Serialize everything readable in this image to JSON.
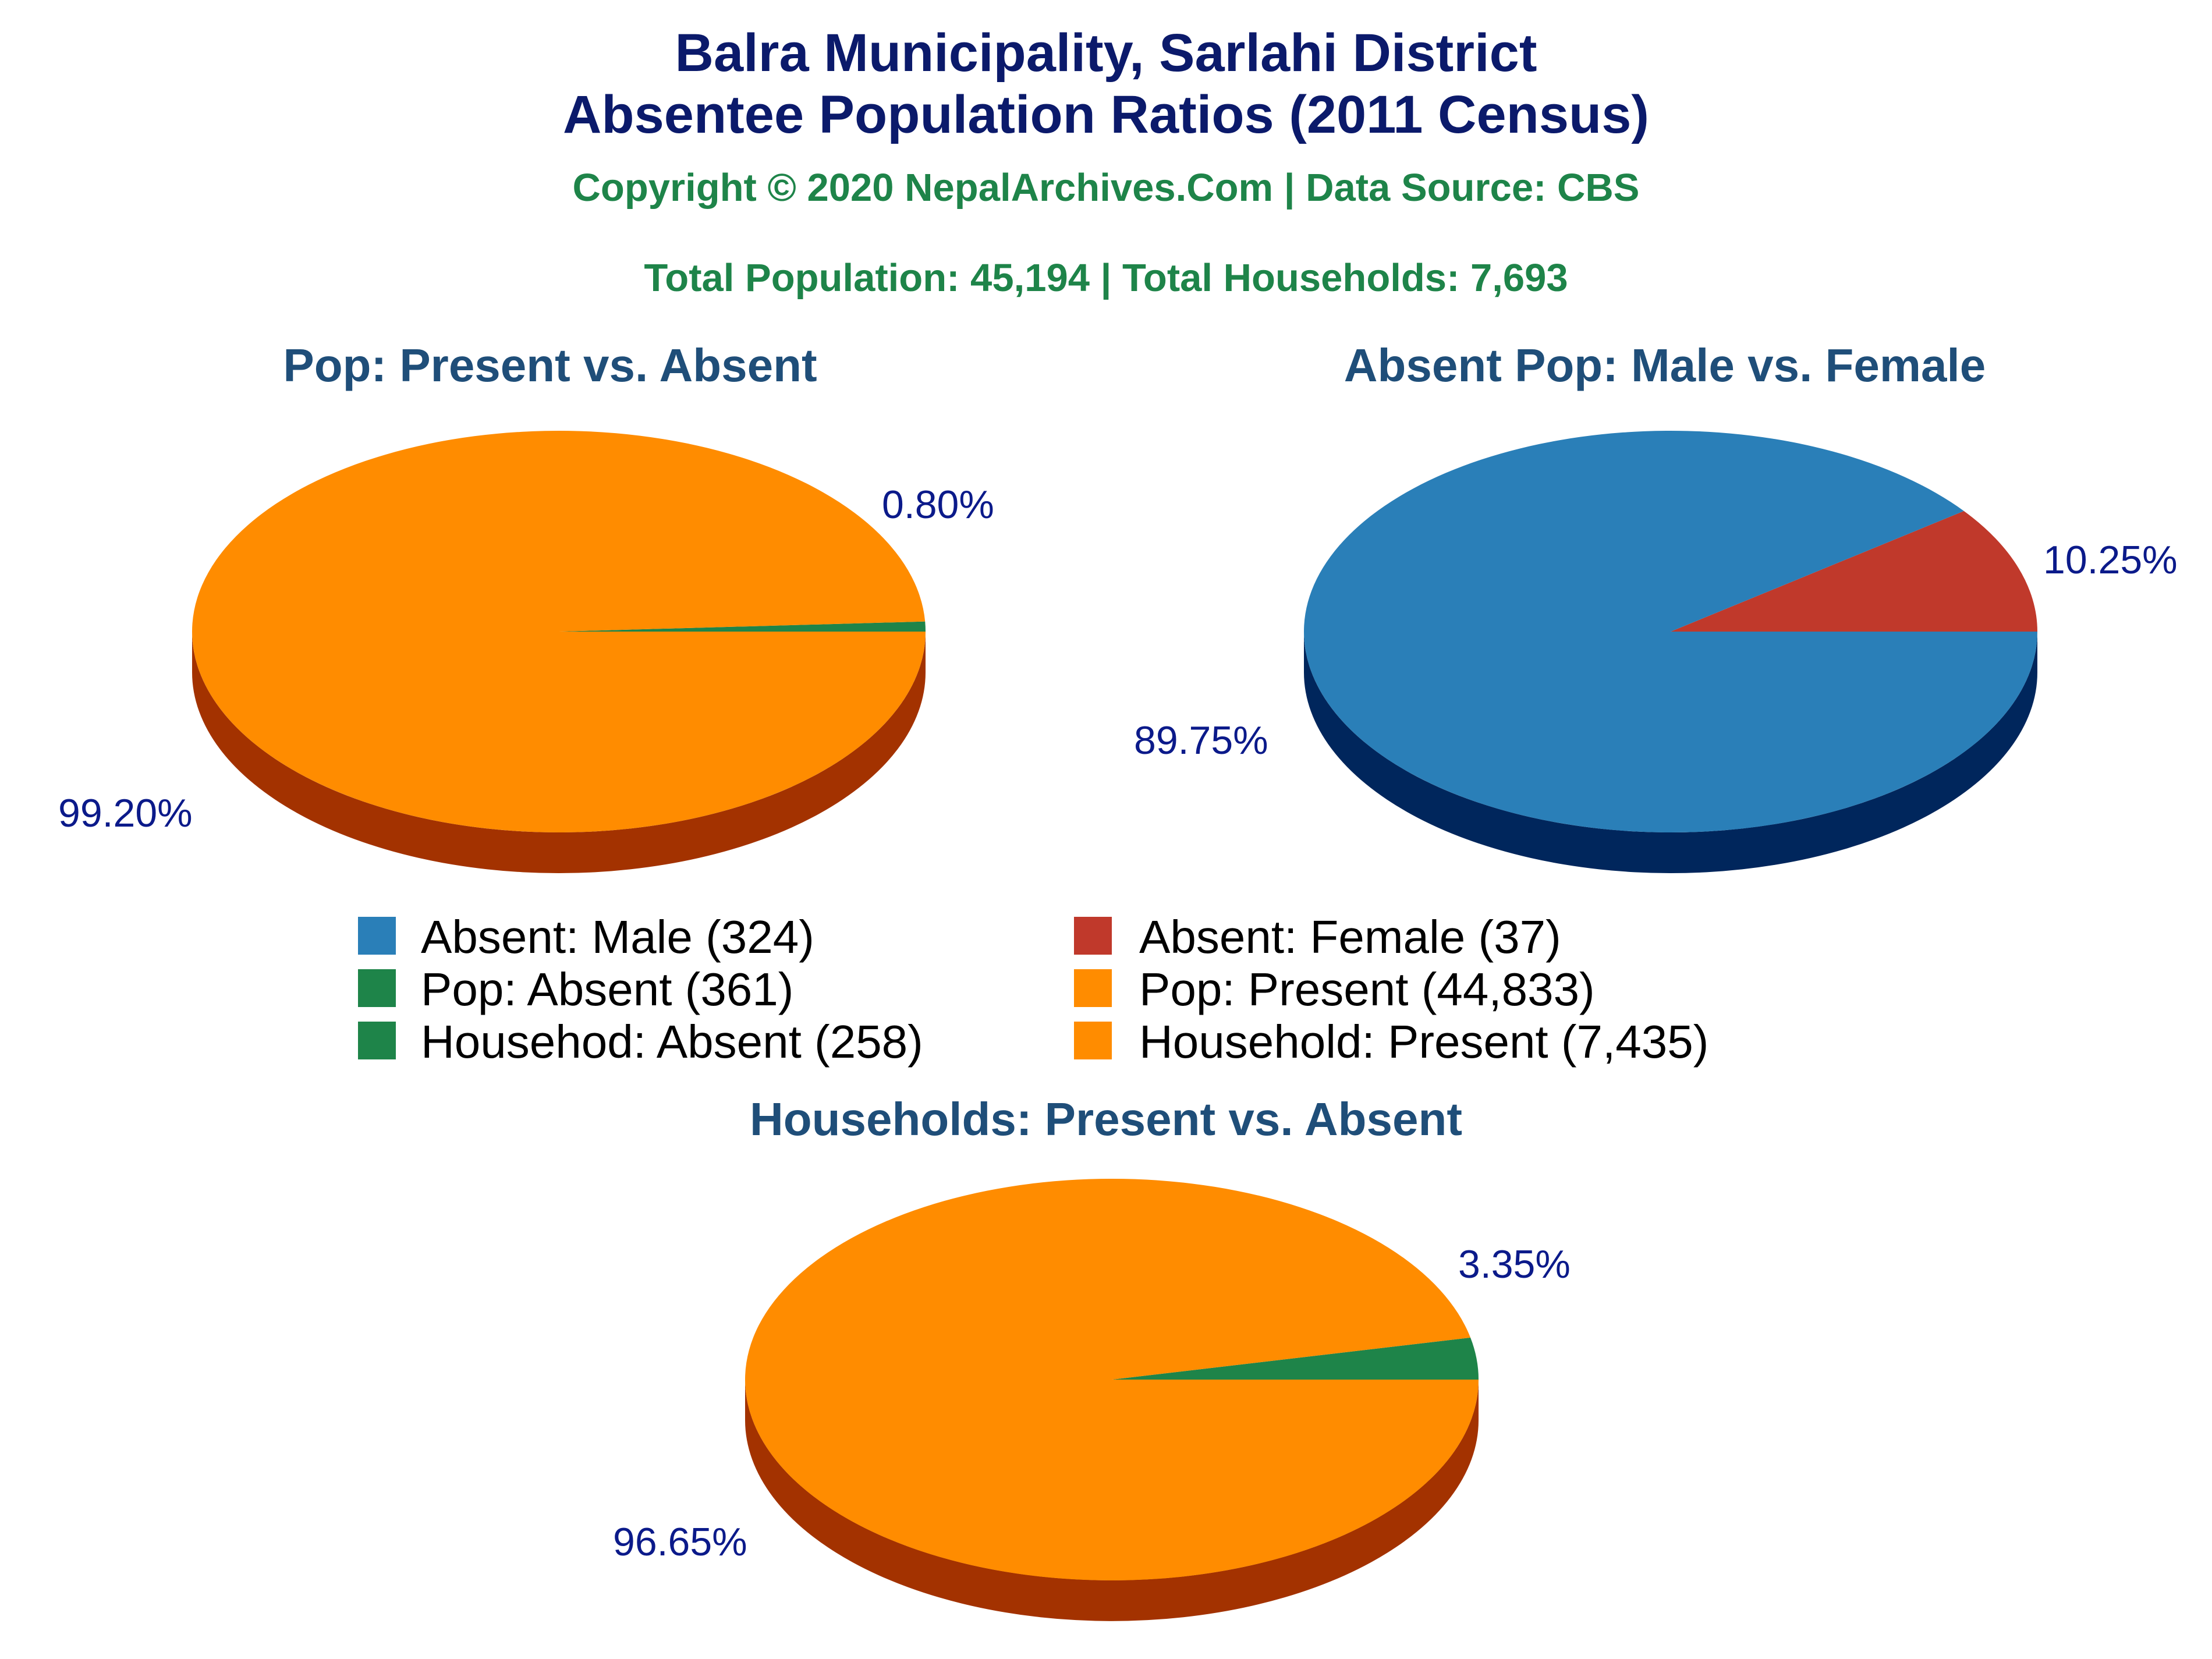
{
  "header": {
    "title_line1": "Balra Municipality, Sarlahi District",
    "title_line2": "Absentee Population Ratios (2011 Census)",
    "copyright": "Copyright © 2020 NepalArchives.Com | Data Source: CBS",
    "totals": "Total Population: 45,194 | Total Households: 7,693"
  },
  "colors": {
    "green": "#1e8449",
    "orange": "#ff8c00",
    "orange_side": "#a33200",
    "blue": "#2a7fb8",
    "blue_side": "#00265c",
    "red": "#c0392b",
    "label": "#0b1a8a",
    "pie_title": "#1f4e79"
  },
  "legend": [
    {
      "label": "Absent: Male (324)",
      "color": "#2a7fb8"
    },
    {
      "label": "Absent: Female (37)",
      "color": "#c0392b"
    },
    {
      "label": "Pop: Absent (361)",
      "color": "#1e8449"
    },
    {
      "label": "Pop: Present (44,833)",
      "color": "#ff8c00"
    },
    {
      "label": "Househod: Absent (258)",
      "color": "#1e8449"
    },
    {
      "label": "Household: Present (7,435)",
      "color": "#ff8c00"
    }
  ],
  "chart_data": [
    {
      "type": "pie",
      "title": "Pop: Present vs. Absent",
      "slices": [
        {
          "label": "Pop: Absent",
          "value": 361,
          "percent": 0.8,
          "percent_label": "0.80%",
          "color": "#1e8449"
        },
        {
          "label": "Pop: Present",
          "value": 44833,
          "percent": 99.2,
          "percent_label": "99.20%",
          "color": "#ff8c00"
        }
      ]
    },
    {
      "type": "pie",
      "title": "Absent Pop: Male vs. Female",
      "slices": [
        {
          "label": "Absent: Female",
          "value": 37,
          "percent": 10.25,
          "percent_label": "10.25%",
          "color": "#c0392b"
        },
        {
          "label": "Absent: Male",
          "value": 324,
          "percent": 89.75,
          "percent_label": "89.75%",
          "color": "#2a7fb8"
        }
      ]
    },
    {
      "type": "pie",
      "title": "Households: Present vs. Absent",
      "slices": [
        {
          "label": "Househod: Absent",
          "value": 258,
          "percent": 3.35,
          "percent_label": "3.35%",
          "color": "#1e8449"
        },
        {
          "label": "Household: Present",
          "value": 7435,
          "percent": 96.65,
          "percent_label": "96.65%",
          "color": "#ff8c00"
        }
      ]
    }
  ]
}
